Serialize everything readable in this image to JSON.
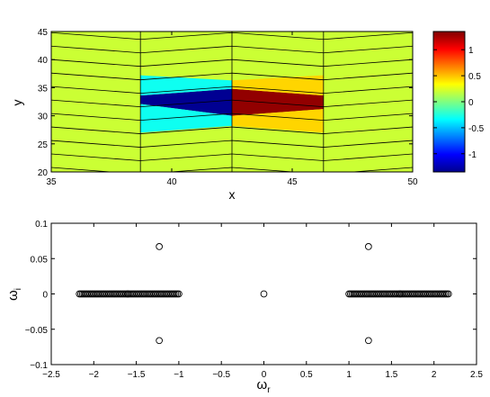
{
  "chart_data": [
    {
      "type": "heatmap",
      "title": "",
      "xlabel": "x",
      "ylabel": "y",
      "xlim": [
        35,
        50
      ],
      "ylim": [
        20,
        45
      ],
      "xticks": [
        35,
        40,
        45,
        50
      ],
      "yticks": [
        20,
        25,
        30,
        35,
        40,
        45
      ],
      "colormap": "jet",
      "clim": [
        -1.35,
        1.35
      ],
      "colorbar": {
        "ticks": [
          1,
          0.5,
          0,
          -0.5,
          -1
        ],
        "tick_labels": [
          "1",
          "0.5",
          "0",
          "-0.5",
          "-1"
        ]
      },
      "mesh_x_columns": [
        35,
        38.7,
        42.5,
        46.3,
        50
      ],
      "cells": [
        {
          "x0": 38.7,
          "x1": 42.5,
          "y_bottom_left": 32.1,
          "y_bottom_right": 30.0,
          "y_top_left": 33.6,
          "y_top_right": 34.8,
          "value": -1.3
        },
        {
          "x0": 42.5,
          "x1": 46.3,
          "y_bottom_left": 30.0,
          "y_bottom_right": 31.2,
          "y_top_left": 34.8,
          "y_top_right": 33.6,
          "value": 1.3
        },
        {
          "x0": 38.7,
          "x1": 42.5,
          "y_bottom_left": 27.0,
          "y_bottom_right": 28.2,
          "y_top_left": 32.1,
          "y_top_right": 30.0,
          "value": -0.3
        },
        {
          "x0": 42.5,
          "x1": 46.3,
          "y_bottom_left": 28.2,
          "y_bottom_right": 27.0,
          "y_top_left": 30.0,
          "y_top_right": 31.2,
          "value": 0.45
        },
        {
          "x0": 38.7,
          "x1": 42.5,
          "y_bottom_left": 33.6,
          "y_bottom_right": 34.8,
          "y_top_left": 37.2,
          "y_top_right": 36.3,
          "value": -0.3
        },
        {
          "x0": 42.5,
          "x1": 46.3,
          "y_bottom_left": 34.8,
          "y_bottom_right": 33.6,
          "y_top_left": 36.3,
          "y_top_right": 37.2,
          "value": 0.45
        }
      ],
      "background_value": 0.2
    },
    {
      "type": "scatter",
      "title": "",
      "xlabel": "ω_r",
      "xlabel_main": "ω",
      "xlabel_sub": "r",
      "ylabel": "ω_i",
      "ylabel_main": "ω",
      "ylabel_sub": "i",
      "xlim": [
        -2.5,
        2.5
      ],
      "ylim": [
        -0.1,
        0.1
      ],
      "xticks": [
        -2.5,
        -2,
        -1.5,
        -1,
        -0.5,
        0,
        0.5,
        1,
        1.5,
        2,
        2.5
      ],
      "xtick_labels": [
        "−2.5",
        "−2",
        "−1.5",
        "−1",
        "−0.5",
        "0",
        "0.5",
        "1",
        "1.5",
        "2",
        "2.5"
      ],
      "yticks": [
        -0.1,
        -0.05,
        0,
        0.05,
        0.1
      ],
      "ytick_labels": [
        "−0.1",
        "−0.05",
        "0",
        "0.05",
        "0.1"
      ],
      "marker": "open-circle",
      "dense_bands": [
        {
          "x_from": -2.17,
          "x_to": -1.0,
          "y": 0
        },
        {
          "x_from": 1.0,
          "x_to": 2.17,
          "y": 0
        }
      ],
      "points": [
        {
          "x": 0,
          "y": 0
        },
        {
          "x": -1.23,
          "y": 0.067
        },
        {
          "x": -1.23,
          "y": -0.066
        },
        {
          "x": 1.23,
          "y": 0.067
        },
        {
          "x": 1.23,
          "y": -0.066
        },
        {
          "x": -1.6,
          "y": 0
        },
        {
          "x": 1.6,
          "y": 0
        }
      ]
    }
  ]
}
